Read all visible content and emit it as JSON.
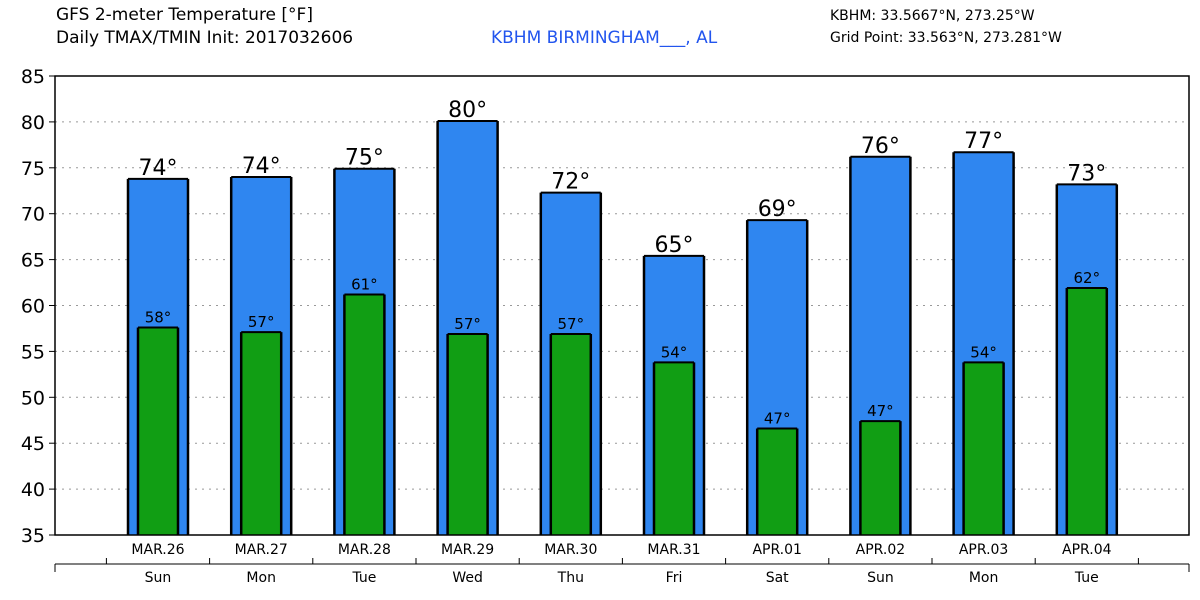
{
  "header": {
    "title_line1": "GFS 2-meter Temperature [°F]",
    "title_line2": "Daily TMAX/TMIN Init: 2017032606",
    "location": "KBHM BIRMINGHAM___, AL",
    "station_coords": "KBHM: 33.5667°N, 273.25°W",
    "grid_point": "Grid Point: 33.563°N, 273.281°W",
    "location_color": "#2255ee"
  },
  "chart_data": {
    "type": "bar",
    "title": "GFS 2-meter Temperature [°F]",
    "ylim": [
      35,
      85
    ],
    "yticks": [
      35,
      40,
      45,
      50,
      55,
      60,
      65,
      70,
      75,
      80,
      85
    ],
    "grid": true,
    "categories": [
      "MAR.26",
      "MAR.27",
      "MAR.28",
      "MAR.29",
      "MAR.30",
      "MAR.31",
      "APR.01",
      "APR.02",
      "APR.03",
      "APR.04"
    ],
    "weekdays": [
      "Sun",
      "Mon",
      "Tue",
      "Wed",
      "Thu",
      "Fri",
      "Sat",
      "Sun",
      "Mon",
      "Tue"
    ],
    "series": [
      {
        "name": "TMAX",
        "color": "#2f86f0",
        "values": [
          73.8,
          74.0,
          74.9,
          80.1,
          72.3,
          65.4,
          69.3,
          76.2,
          76.7,
          73.2
        ],
        "labels": [
          "74°",
          "74°",
          "75°",
          "80°",
          "72°",
          "65°",
          "69°",
          "76°",
          "77°",
          "73°"
        ]
      },
      {
        "name": "TMIN",
        "color": "#119e14",
        "values": [
          57.6,
          57.1,
          61.2,
          56.9,
          56.9,
          53.8,
          46.6,
          47.4,
          53.8,
          61.9
        ],
        "labels": [
          "58°",
          "57°",
          "61°",
          "57°",
          "57°",
          "54°",
          "47°",
          "47°",
          "54°",
          "62°"
        ]
      }
    ]
  }
}
